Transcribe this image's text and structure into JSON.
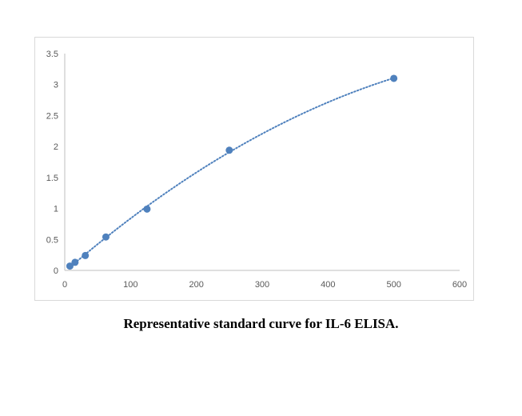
{
  "colors": {
    "point": "#4f81bd",
    "trendline": "#4f81bd",
    "axis": "#bfbfbf",
    "tick_text": "#595959"
  },
  "caption": "Representative standard curve for IL-6 ELISA.",
  "chart_data": {
    "type": "scatter",
    "x": [
      7.8,
      15.6,
      31.25,
      62.5,
      125,
      250,
      500
    ],
    "y": [
      0.07,
      0.13,
      0.24,
      0.54,
      0.99,
      1.94,
      3.1
    ],
    "trendline": "polynomial-dotted",
    "xlim": [
      0,
      600
    ],
    "ylim": [
      0,
      3.5
    ],
    "xticks": [
      0,
      100,
      200,
      300,
      400,
      500,
      600
    ],
    "yticks": [
      0,
      0.5,
      1,
      1.5,
      2,
      2.5,
      3,
      3.5
    ],
    "xtick_labels": [
      "0",
      "100",
      "200",
      "300",
      "400",
      "500",
      "600"
    ],
    "ytick_labels": [
      "0",
      "0.5",
      "1",
      "1.5",
      "2",
      "2.5",
      "3",
      "3.5"
    ],
    "grid": false,
    "legend": "none"
  }
}
